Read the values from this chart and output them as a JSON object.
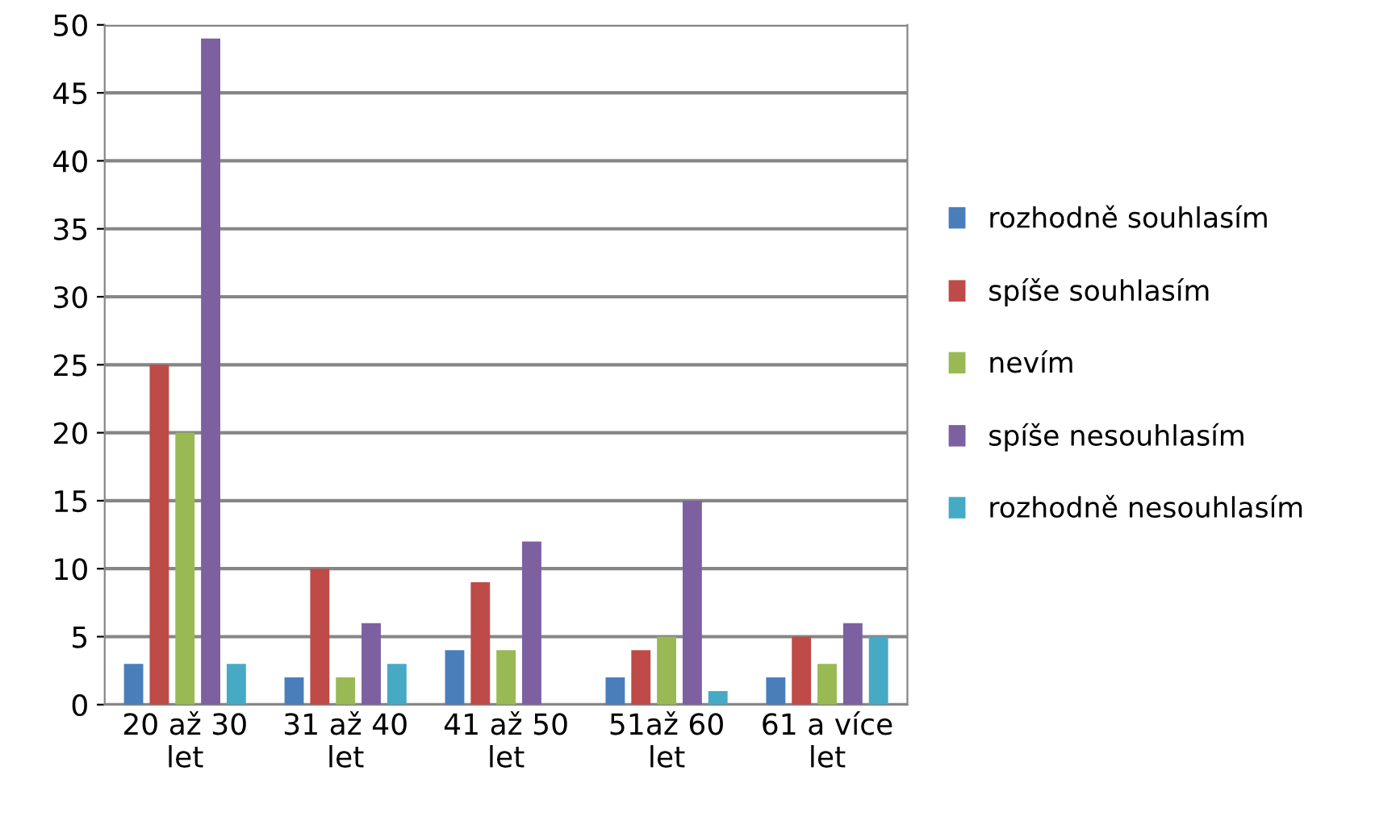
{
  "chart_data": {
    "type": "bar",
    "categories": [
      "20 až 30\nlet",
      "31 až 40\nlet",
      "41 až 50\nlet",
      "51až 60\nlet",
      "61 a více\nlet"
    ],
    "series": [
      {
        "name": "rozhodně souhlasím",
        "color": "#4a7ebb",
        "values": [
          3,
          2,
          4,
          2,
          2
        ]
      },
      {
        "name": "spíše souhlasím",
        "color": "#be4b48",
        "values": [
          25,
          10,
          9,
          4,
          5
        ]
      },
      {
        "name": "nevím",
        "color": "#98b954",
        "values": [
          20,
          2,
          4,
          5,
          3
        ]
      },
      {
        "name": "spíše nesouhlasím",
        "color": "#7d60a0",
        "values": [
          49,
          6,
          12,
          15,
          6
        ]
      },
      {
        "name": "rozhodně nesouhlasím",
        "color": "#46aac5",
        "values": [
          3,
          3,
          0,
          1,
          5
        ]
      }
    ],
    "ylim": [
      0,
      50
    ],
    "yticks": [
      0,
      5,
      10,
      15,
      20,
      25,
      30,
      35,
      40,
      45,
      50
    ],
    "grid": "y",
    "legend": "right"
  }
}
